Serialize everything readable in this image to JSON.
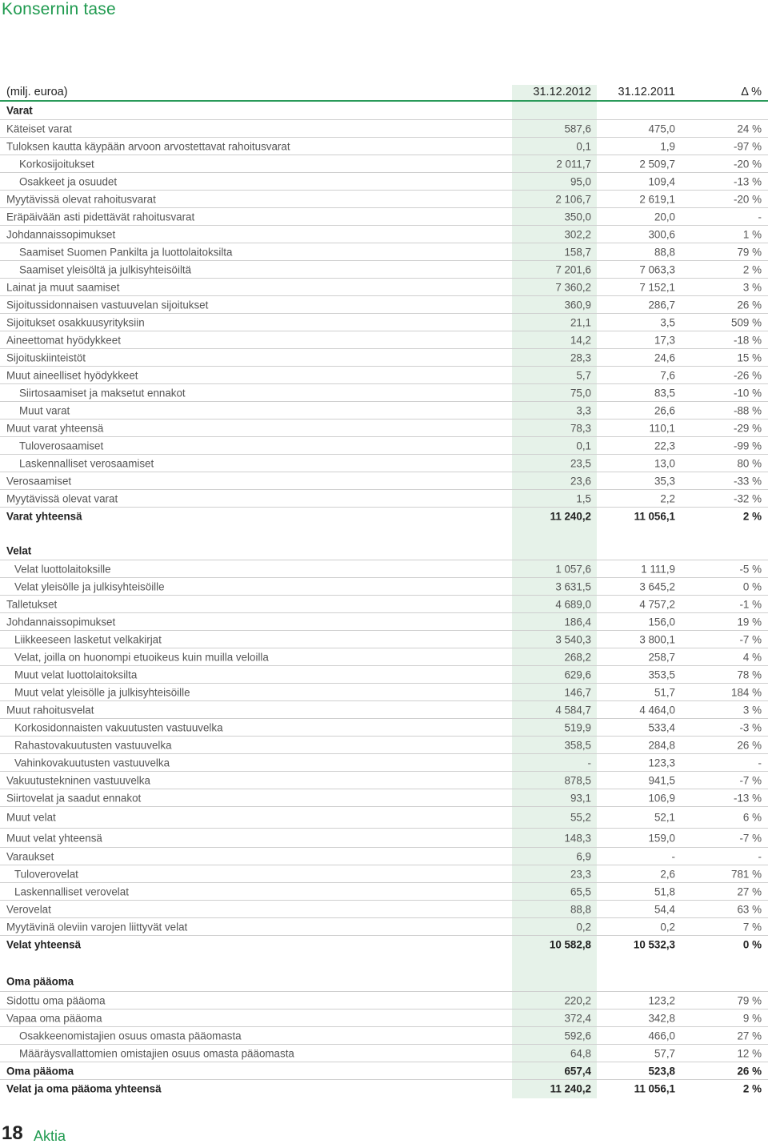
{
  "page": {
    "title": "Konsernin tase"
  },
  "table": {
    "header": {
      "label": "(milj. euroa)",
      "col1": "31.12.2012",
      "col2": "31.12.2011",
      "col3": "Δ %"
    },
    "rows": [
      {
        "label": "Varat",
        "v1": "",
        "v2": "",
        "v3": "",
        "style": "head",
        "h": 22
      },
      {
        "label": "Käteiset varat",
        "v1": "587,6",
        "v2": "475,0",
        "v3": "24 %",
        "style": "sep",
        "h": 22
      },
      {
        "label": "Tuloksen kautta käypään arvoon arvostettavat rahoitusvarat",
        "v1": "0,1",
        "v2": "1,9",
        "v3": "-97 %",
        "style": "sep",
        "h": 22
      },
      {
        "label": "Korkosijoitukset",
        "v1": "2 011,7",
        "v2": "2 509,7",
        "v3": "-20 %",
        "style": "sep ind2",
        "h": 22
      },
      {
        "label": "Osakkeet ja osuudet",
        "v1": "95,0",
        "v2": "109,4",
        "v3": "-13 %",
        "style": "sep ind2",
        "h": 22
      },
      {
        "label": "Myytävissä olevat rahoitusvarat",
        "v1": "2 106,7",
        "v2": "2 619,1",
        "v3": "-20 %",
        "style": "sep",
        "h": 22
      },
      {
        "label": "Eräpäivään asti pidettävät rahoitusvarat",
        "v1": "350,0",
        "v2": "20,0",
        "v3": "-",
        "style": "sep",
        "h": 22
      },
      {
        "label": "Johdannaissopimukset",
        "v1": "302,2",
        "v2": "300,6",
        "v3": "1 %",
        "style": "sep",
        "h": 22
      },
      {
        "label": "Saamiset Suomen Pankilta ja luottolaitoksilta",
        "v1": "158,7",
        "v2": "88,8",
        "v3": "79 %",
        "style": "sep ind2",
        "h": 22
      },
      {
        "label": "Saamiset yleisöltä ja julkisyhteisöiltä",
        "v1": "7 201,6",
        "v2": "7 063,3",
        "v3": "2 %",
        "style": "sep ind2",
        "h": 22
      },
      {
        "label": "Lainat ja muut saamiset",
        "v1": "7 360,2",
        "v2": "7 152,1",
        "v3": "3 %",
        "style": "sep",
        "h": 22
      },
      {
        "label": "Sijoitussidonnaisen vastuuvelan sijoitukset",
        "v1": "360,9",
        "v2": "286,7",
        "v3": "26 %",
        "style": "sep",
        "h": 22
      },
      {
        "label": "Sijoitukset osakkuusyrityksiin",
        "v1": "21,1",
        "v2": "3,5",
        "v3": "509 %",
        "style": "sep",
        "h": 22
      },
      {
        "label": "Aineettomat hyödykkeet",
        "v1": "14,2",
        "v2": "17,3",
        "v3": "-18 %",
        "style": "sep",
        "h": 22
      },
      {
        "label": "Sijoituskiinteistöt",
        "v1": "28,3",
        "v2": "24,6",
        "v3": "15 %",
        "style": "sep",
        "h": 22
      },
      {
        "label": "Muut aineelliset hyödykkeet",
        "v1": "5,7",
        "v2": "7,6",
        "v3": "-26 %",
        "style": "sep",
        "h": 22
      },
      {
        "label": "Siirtosaamiset ja maksetut ennakot",
        "v1": "75,0",
        "v2": "83,5",
        "v3": "-10 %",
        "style": "sep ind2",
        "h": 22
      },
      {
        "label": "Muut varat",
        "v1": "3,3",
        "v2": "26,6",
        "v3": "-88 %",
        "style": "sep ind2",
        "h": 22
      },
      {
        "label": "Muut varat yhteensä",
        "v1": "78,3",
        "v2": "110,1",
        "v3": "-29 %",
        "style": "sep",
        "h": 22
      },
      {
        "label": "Tuloverosaamiset",
        "v1": "0,1",
        "v2": "22,3",
        "v3": "-99 %",
        "style": "sep ind2",
        "h": 22
      },
      {
        "label": "Laskennalliset verosaamiset",
        "v1": "23,5",
        "v2": "13,0",
        "v3": "80 %",
        "style": "sep ind2",
        "h": 22
      },
      {
        "label": "Verosaamiset",
        "v1": "23,6",
        "v2": "35,3",
        "v3": "-33 %",
        "style": "sep",
        "h": 22
      },
      {
        "label": "Myytävissä olevat varat",
        "v1": "1,5",
        "v2": "2,2",
        "v3": "-32 %",
        "style": "sep",
        "h": 22
      },
      {
        "label": "Varat yhteensä",
        "v1": "11 240,2",
        "v2": "11 056,1",
        "v3": "2 %",
        "style": "sep bold",
        "h": 22
      },
      {
        "label": "",
        "v1": "",
        "v2": "",
        "v3": "",
        "style": "",
        "h": 22
      },
      {
        "label": "Velat",
        "v1": "",
        "v2": "",
        "v3": "",
        "style": "head",
        "h": 22
      },
      {
        "label": "Velat luottolaitoksille",
        "v1": "1 057,6",
        "v2": "1 111,9",
        "v3": "-5 %",
        "style": "sep ind1",
        "h": 22
      },
      {
        "label": "Velat yleisölle ja julkisyhteisöille",
        "v1": "3 631,5",
        "v2": "3 645,2",
        "v3": "0 %",
        "style": "sep ind1",
        "h": 22
      },
      {
        "label": "Talletukset",
        "v1": "4 689,0",
        "v2": "4 757,2",
        "v3": "-1 %",
        "style": "sep",
        "h": 22
      },
      {
        "label": "Johdannaissopimukset",
        "v1": "186,4",
        "v2": "156,0",
        "v3": "19 %",
        "style": "sep",
        "h": 22
      },
      {
        "label": "Liikkeeseen lasketut velkakirjat",
        "v1": "3 540,3",
        "v2": "3 800,1",
        "v3": "-7 %",
        "style": "sep ind1",
        "h": 22
      },
      {
        "label": "Velat, joilla on huonompi etuoikeus kuin muilla veloilla",
        "v1": "268,2",
        "v2": "258,7",
        "v3": "4 %",
        "style": "sep ind1",
        "h": 22
      },
      {
        "label": "Muut velat luottolaitoksilta",
        "v1": "629,6",
        "v2": "353,5",
        "v3": "78 %",
        "style": "sep ind1",
        "h": 22
      },
      {
        "label": "Muut velat yleisölle ja julkisyhteisöille",
        "v1": "146,7",
        "v2": "51,7",
        "v3": "184 %",
        "style": "sep ind1",
        "h": 22
      },
      {
        "label": "Muut rahoitusvelat",
        "v1": "4 584,7",
        "v2": "4 464,0",
        "v3": "3 %",
        "style": "sep",
        "h": 22
      },
      {
        "label": "Korkosidonnaisten vakuutusten vastuuvelka",
        "v1": "519,9",
        "v2": "533,4",
        "v3": "-3 %",
        "style": "sep ind1",
        "h": 22
      },
      {
        "label": "Rahastovakuutusten vastuuvelka",
        "v1": "358,5",
        "v2": "284,8",
        "v3": "26 %",
        "style": "sep ind1",
        "h": 22
      },
      {
        "label": "Vahinkovakuutusten vastuuvelka",
        "v1": "-",
        "v2": "123,3",
        "v3": "-",
        "style": "sep ind1",
        "h": 22
      },
      {
        "label": "Vakuutustekninen vastuuvelka",
        "v1": "878,5",
        "v2": "941,5",
        "v3": "-7 %",
        "style": "sep",
        "h": 22
      },
      {
        "label": "Siirtovelat ja saadut ennakot",
        "v1": "93,1",
        "v2": "106,9",
        "v3": "-13 %",
        "style": "sep",
        "h": 22
      },
      {
        "label": "Muut velat",
        "v1": "55,2",
        "v2": "52,1",
        "v3": "6 %",
        "style": "sep",
        "h": 27
      },
      {
        "label": "Muut velat yhteensä",
        "v1": "148,3",
        "v2": "159,0",
        "v3": "-7 %",
        "style": "sep",
        "h": 24
      },
      {
        "label": "Varaukset",
        "v1": "6,9",
        "v2": "-",
        "v3": "-",
        "style": "sep",
        "h": 22
      },
      {
        "label": "Tuloverovelat",
        "v1": "23,3",
        "v2": "2,6",
        "v3": "781 %",
        "style": "sep ind1",
        "h": 22
      },
      {
        "label": "Laskennalliset verovelat",
        "v1": "65,5",
        "v2": "51,8",
        "v3": "27 %",
        "style": "sep ind1",
        "h": 22
      },
      {
        "label": "Verovelat",
        "v1": "88,8",
        "v2": "54,4",
        "v3": "63 %",
        "style": "sep",
        "h": 22
      },
      {
        "label": "Myytävinä oleviin varojen liittyvät velat",
        "v1": "0,2",
        "v2": "0,2",
        "v3": "7 %",
        "style": "sep",
        "h": 22
      },
      {
        "label": "Velat yhteensä",
        "v1": "10 582,8",
        "v2": "10 532,3",
        "v3": "0 %",
        "style": "sep bold",
        "h": 22
      },
      {
        "label": "",
        "v1": "",
        "v2": "",
        "v3": "",
        "style": "",
        "h": 24
      },
      {
        "label": "Oma pääoma",
        "v1": "",
        "v2": "",
        "v3": "",
        "style": "head",
        "h": 24
      },
      {
        "label": "Sidottu oma pääoma",
        "v1": "220,2",
        "v2": "123,2",
        "v3": "79 %",
        "style": "sep",
        "h": 22
      },
      {
        "label": "Vapaa oma pääoma",
        "v1": "372,4",
        "v2": "342,8",
        "v3": "9 %",
        "style": "sep",
        "h": 22
      },
      {
        "label": "Osakkeenomistajien osuus omasta pääomasta",
        "v1": "592,6",
        "v2": "466,0",
        "v3": "27 %",
        "style": "sep ind2",
        "h": 22
      },
      {
        "label": "Määräysvallattomien omistajien osuus omasta pääomasta",
        "v1": "64,8",
        "v2": "57,7",
        "v3": "12 %",
        "style": "sep ind2",
        "h": 22
      },
      {
        "label": "Oma pääoma",
        "v1": "657,4",
        "v2": "523,8",
        "v3": "26 %",
        "style": "sep bold",
        "h": 22
      },
      {
        "label": "Velat ja oma pääoma yhteensä",
        "v1": "11 240,2",
        "v2": "11 056,1",
        "v3": "2 %",
        "style": "sep bold",
        "h": 22
      }
    ]
  },
  "footer": {
    "page_number": "18",
    "brand": "Aktia"
  },
  "colors": {
    "accent": "#1f9a4f",
    "shade": "#e6f2e9"
  }
}
